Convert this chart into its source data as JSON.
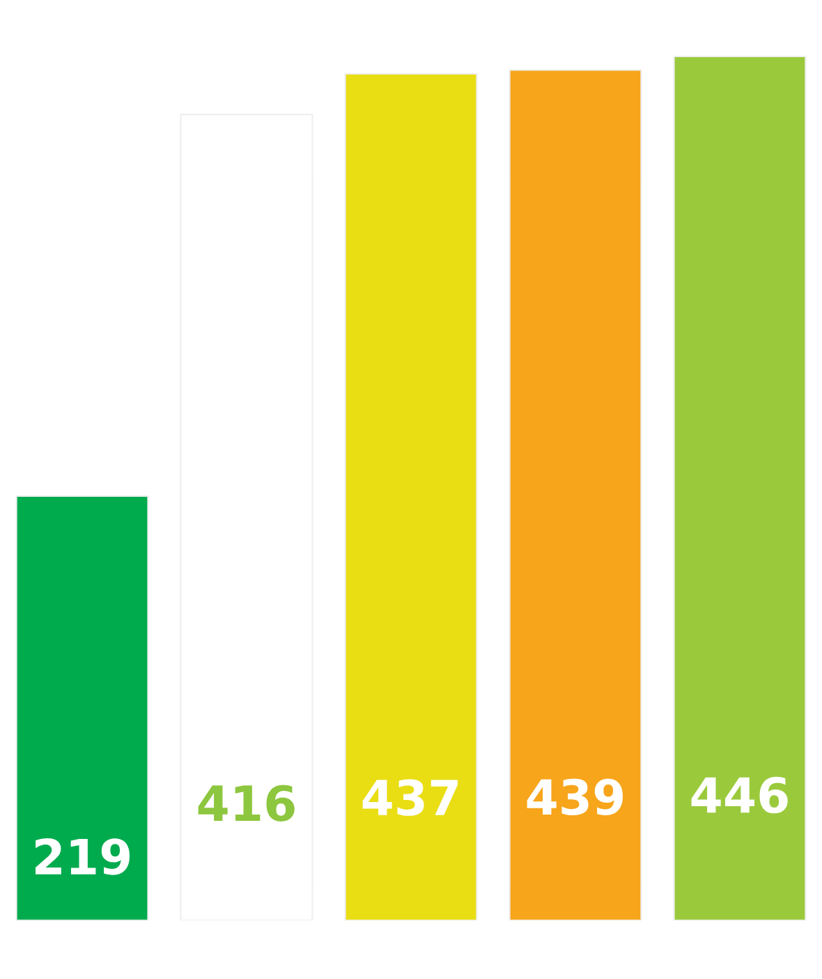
{
  "chart_data": {
    "type": "bar",
    "categories": [
      null,
      null,
      null,
      null,
      null
    ],
    "values": [
      219,
      416,
      437,
      439,
      446
    ],
    "colors": [
      "#00ab4e",
      "#ffffff",
      "#e9dd14",
      "#f7a51b",
      "#9aca3c"
    ],
    "data_labels": true
  }
}
